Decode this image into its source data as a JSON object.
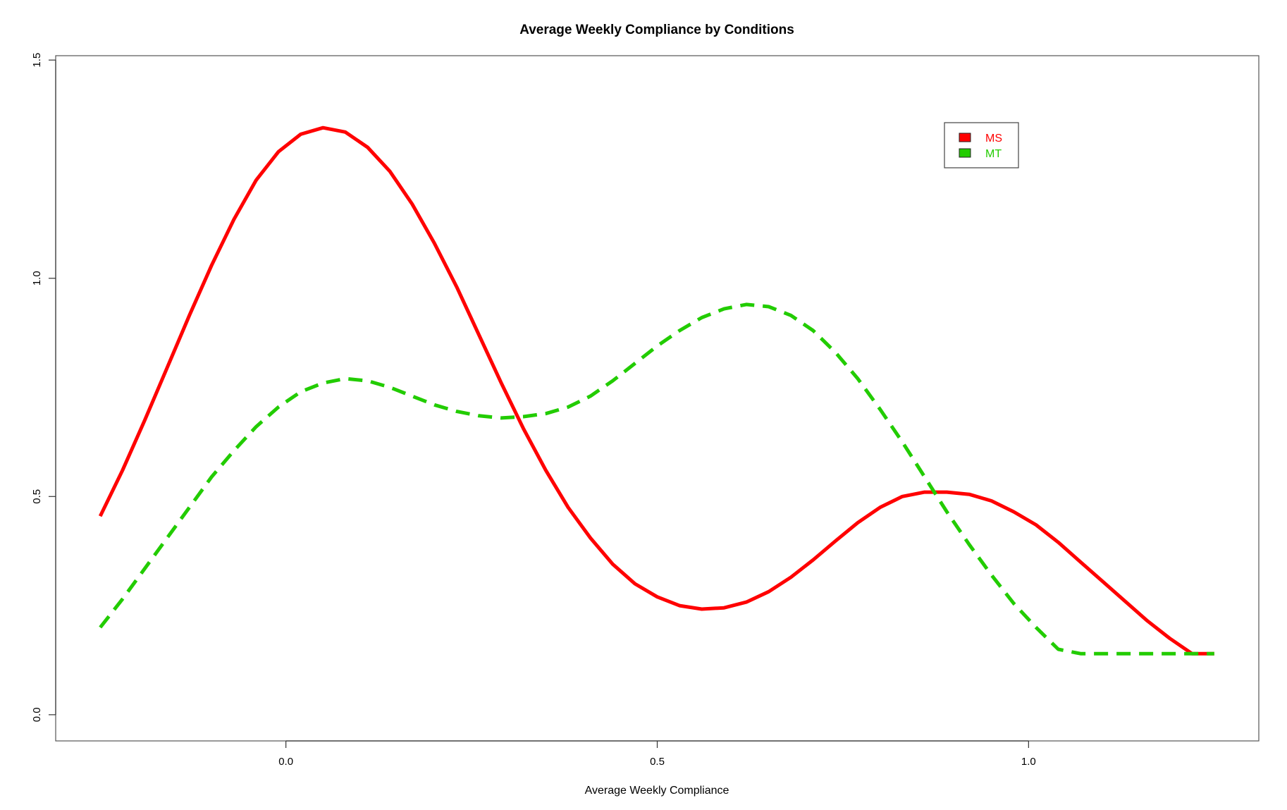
{
  "chart_data": {
    "type": "line",
    "title": "Average Weekly Compliance by Conditions",
    "xlabel": "Average Weekly Compliance",
    "ylabel": "",
    "xlim": [
      -0.31,
      1.31
    ],
    "ylim": [
      -0.06,
      1.51
    ],
    "x_ticks": [
      {
        "value": 0.0,
        "label": "0.0"
      },
      {
        "value": 0.5,
        "label": "0.5"
      },
      {
        "value": 1.0,
        "label": "1.0"
      }
    ],
    "y_ticks": [
      {
        "value": 0.0,
        "label": "0.0"
      },
      {
        "value": 0.5,
        "label": "0.5"
      },
      {
        "value": 1.0,
        "label": "1.0"
      },
      {
        "value": 1.5,
        "label": "1.5"
      }
    ],
    "grid": false,
    "legend_position": "top-right",
    "x": [
      -0.25,
      -0.22,
      -0.19,
      -0.16,
      -0.13,
      -0.1,
      -0.07,
      -0.04,
      -0.01,
      0.02,
      0.05,
      0.08,
      0.11,
      0.14,
      0.17,
      0.2,
      0.23,
      0.26,
      0.29,
      0.32,
      0.35,
      0.38,
      0.41,
      0.44,
      0.47,
      0.5,
      0.53,
      0.56,
      0.59,
      0.62,
      0.65,
      0.68,
      0.71,
      0.74,
      0.77,
      0.8,
      0.83,
      0.86,
      0.89,
      0.92,
      0.95,
      0.98,
      1.01,
      1.04,
      1.07,
      1.1,
      1.13,
      1.16,
      1.19,
      1.22,
      1.25
    ],
    "series": [
      {
        "name": "MS",
        "color": "#ff0000",
        "dash": "solid",
        "values": [
          0.455,
          0.56,
          0.675,
          0.795,
          0.915,
          1.03,
          1.135,
          1.225,
          1.29,
          1.33,
          1.345,
          1.335,
          1.3,
          1.245,
          1.17,
          1.08,
          0.98,
          0.87,
          0.76,
          0.655,
          0.56,
          0.475,
          0.405,
          0.345,
          0.3,
          0.27,
          0.25,
          0.242,
          0.245,
          0.258,
          0.282,
          0.315,
          0.355,
          0.398,
          0.44,
          0.475,
          0.5,
          0.51,
          0.51,
          0.505,
          0.49,
          0.465,
          0.435,
          0.395,
          0.35,
          0.305,
          0.26,
          0.215,
          0.175,
          0.14,
          0.14
        ]
      },
      {
        "name": "MT",
        "color": "#22cc00",
        "dash": "dashed",
        "values": [
          0.2,
          0.265,
          0.335,
          0.405,
          0.475,
          0.545,
          0.605,
          0.66,
          0.705,
          0.74,
          0.76,
          0.77,
          0.765,
          0.75,
          0.73,
          0.71,
          0.695,
          0.685,
          0.68,
          0.683,
          0.69,
          0.705,
          0.73,
          0.765,
          0.805,
          0.845,
          0.88,
          0.91,
          0.93,
          0.94,
          0.935,
          0.915,
          0.88,
          0.83,
          0.77,
          0.7,
          0.625,
          0.545,
          0.465,
          0.39,
          0.32,
          0.255,
          0.2,
          0.15,
          0.14,
          0.14,
          0.14,
          0.14,
          0.14,
          0.14,
          0.14
        ]
      }
    ]
  }
}
